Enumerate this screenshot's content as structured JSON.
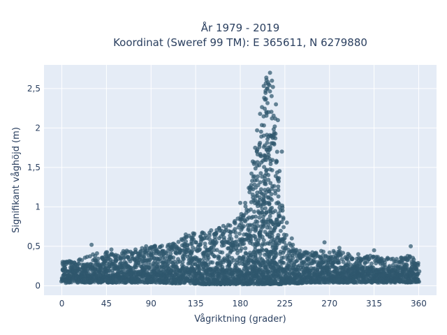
{
  "chart_data": {
    "type": "scatter",
    "title_lines": [
      "År 1979 - 2019",
      "Koordinat (Sweref 99 TM): E 365611, N 6279880"
    ],
    "xlabel": "Vågriktning (grader)",
    "ylabel": "Signifikant våghöjd (m)",
    "xlim": [
      -18,
      378
    ],
    "ylim": [
      -0.12,
      2.8
    ],
    "xticks": [
      0,
      45,
      90,
      135,
      180,
      225,
      270,
      315,
      360
    ],
    "xtick_labels": [
      "0",
      "45",
      "90",
      "135",
      "180",
      "225",
      "270",
      "315",
      "360"
    ],
    "yticks": [
      0,
      0.5,
      1,
      1.5,
      2,
      2.5
    ],
    "ytick_labels": [
      "0",
      "0,5",
      "1",
      "1,5",
      "2",
      "2,5"
    ],
    "grid": true,
    "legend": "none",
    "colors": {
      "marker": "#2f586e",
      "plot_bg": "#e5ecf6",
      "grid": "#ffffff",
      "text": "#2a3f5f"
    },
    "series": [
      {
        "x": [
          0,
          10,
          20,
          30,
          40,
          50,
          60,
          70,
          80,
          90,
          100,
          110,
          120,
          130,
          140,
          150,
          160,
          170,
          180,
          190,
          195,
          200,
          205,
          210,
          215,
          220,
          225,
          230,
          240,
          250,
          260,
          270,
          280,
          290,
          300,
          310,
          320,
          330,
          340,
          350,
          360
        ],
        "y_min": [
          0.03,
          0.04,
          0.04,
          0.04,
          0.04,
          0.04,
          0.04,
          0.04,
          0.04,
          0.04,
          0.04,
          0.03,
          0.03,
          0.03,
          0.02,
          0.02,
          0.02,
          0.02,
          0.02,
          0.02,
          0.02,
          0.02,
          0.02,
          0.02,
          0.02,
          0.02,
          0.03,
          0.03,
          0.03,
          0.04,
          0.04,
          0.04,
          0.04,
          0.04,
          0.04,
          0.04,
          0.04,
          0.04,
          0.04,
          0.04,
          0.05
        ],
        "y_max": [
          0.3,
          0.32,
          0.35,
          0.4,
          0.42,
          0.43,
          0.44,
          0.45,
          0.48,
          0.5,
          0.52,
          0.55,
          0.6,
          0.68,
          0.7,
          0.72,
          0.75,
          0.8,
          0.95,
          1.3,
          1.7,
          2.0,
          2.7,
          2.6,
          2.1,
          1.3,
          0.7,
          0.55,
          0.45,
          0.42,
          0.45,
          0.45,
          0.45,
          0.42,
          0.4,
          0.38,
          0.38,
          0.36,
          0.36,
          0.4,
          0.3
        ],
        "outliers": [
          [
            30,
            0.52
          ],
          [
            50,
            0.46
          ],
          [
            85,
            0.5
          ],
          [
            125,
            0.65
          ],
          [
            180,
            1.05
          ],
          [
            195,
            1.75
          ],
          [
            197,
            1.97
          ],
          [
            200,
            2.18
          ],
          [
            205,
            2.36
          ],
          [
            207,
            2.5
          ],
          [
            208,
            2.58
          ],
          [
            210,
            2.7
          ],
          [
            212,
            2.6
          ],
          [
            213,
            2.52
          ],
          [
            216,
            2.3
          ],
          [
            218,
            2.1
          ],
          [
            222,
            1.7
          ],
          [
            227,
            0.8
          ],
          [
            232,
            0.6
          ],
          [
            265,
            0.55
          ],
          [
            280,
            0.48
          ],
          [
            315,
            0.45
          ],
          [
            352,
            0.5
          ]
        ]
      }
    ]
  }
}
